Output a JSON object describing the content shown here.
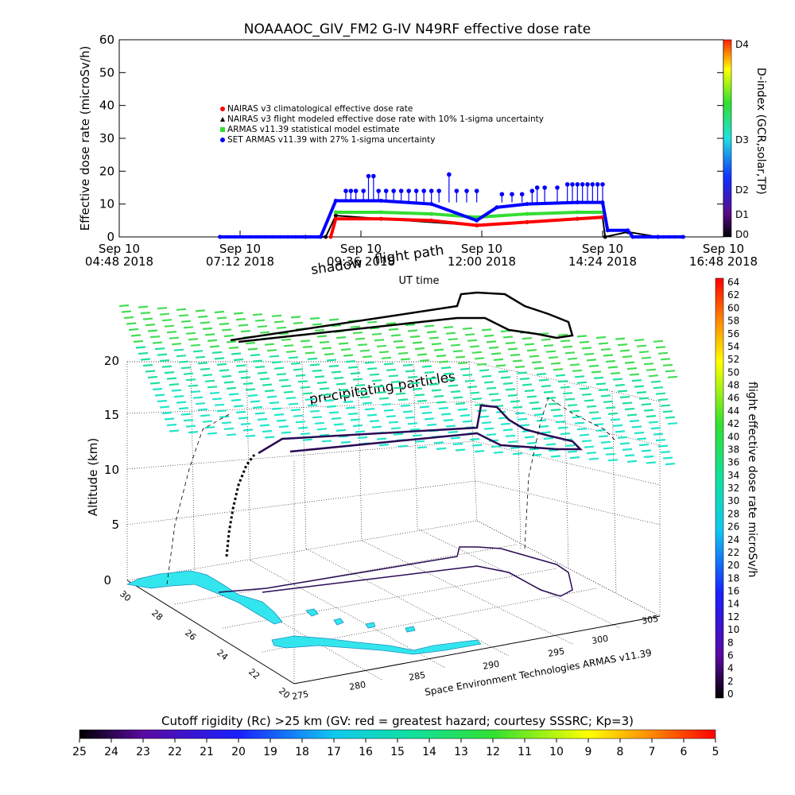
{
  "title": "NOAAAOC_GIV_FM2 G-IV   N49RF  effective dose rate",
  "colors": {
    "red": "#ff0000",
    "black": "#000000",
    "green": "#33dd33",
    "blue": "#0000ff",
    "cyan": "#33e6ee",
    "dark_purple": "#2a0a55",
    "flight_green": "#22cc55"
  },
  "chart_data": [
    {
      "type": "line",
      "ylabel": "Effective dose rate (microSv/h)",
      "xlabel": "UT time",
      "ylim": [
        0,
        60
      ],
      "xlim": [
        "2018-09-10T04:48",
        "2018-09-10T16:48"
      ],
      "y_ticks": [
        "0",
        "10",
        "20",
        "30",
        "40",
        "50",
        "60"
      ],
      "x_ticks": [
        {
          "x": "04:48",
          "line1": "Sep 10",
          "line2": "04:48 2018"
        },
        {
          "x": "07:12",
          "line1": "Sep 10",
          "line2": "07:12 2018"
        },
        {
          "x": "09:36",
          "line1": "Sep 10",
          "line2": "09:36 2018"
        },
        {
          "x": "12:00",
          "line1": "Sep 10",
          "line2": "12:00 2018"
        },
        {
          "x": "14:24",
          "line1": "Sep 10",
          "line2": "14:24 2018"
        },
        {
          "x": "16:48",
          "line1": "Sep 10",
          "line2": "16:48 2018"
        }
      ],
      "legend": [
        {
          "label": "NAIRAS v3 climatological effective dose rate",
          "color": "#ff0000",
          "marker": "circle"
        },
        {
          "label": "NAIRAS v3 flight modeled effective dose rate with 10% 1-sigma uncertainty",
          "color": "#000000",
          "marker": "triangle"
        },
        {
          "label": "ARMAS v11.39 statistical model estimate",
          "color": "#33dd33",
          "marker": "square"
        },
        {
          "label": "SET ARMAS v11.39 with 27% 1-sigma uncertainty",
          "color": "#0000ff",
          "marker": "circle"
        }
      ],
      "overlay_labels": [
        "shadow",
        "flight path"
      ],
      "series": [
        {
          "color": "#000000",
          "x": [
            6.8,
            8.5,
            8.9,
            9.1,
            11.9,
            12.9,
            13.9,
            14.4,
            14.45,
            14.9,
            15.5,
            16.0
          ],
          "y": [
            0,
            0,
            0,
            6.5,
            3.5,
            4.5,
            5.5,
            6,
            0,
            1.5,
            0,
            0
          ]
        },
        {
          "color": "#ff0000",
          "x": [
            9.0,
            9.1,
            10.0,
            11.0,
            11.9,
            12.9,
            13.9,
            14.4
          ],
          "y": [
            0,
            5.5,
            5.5,
            5,
            3.5,
            4.5,
            5.5,
            6
          ]
        },
        {
          "color": "#33dd33",
          "x": [
            9.1,
            10.0,
            11.0,
            11.9,
            12.9,
            13.9,
            14.4
          ],
          "y": [
            7.5,
            7.5,
            7,
            6,
            7,
            7.5,
            7.5
          ]
        },
        {
          "color": "#0000ff",
          "x": [
            6.8,
            8.8,
            9.1,
            10.0,
            11.0,
            11.9,
            12.3,
            12.9,
            13.9,
            14.4,
            14.5,
            14.9,
            15.0,
            15.5,
            16.0
          ],
          "y": [
            0,
            0,
            11,
            11,
            10,
            5,
            9,
            10,
            10.5,
            10.5,
            2,
            2,
            0,
            0,
            0
          ]
        }
      ],
      "blue_spikes": [
        {
          "x": 9.3,
          "y": 14
        },
        {
          "x": 9.4,
          "y": 14
        },
        {
          "x": 9.5,
          "y": 14
        },
        {
          "x": 9.65,
          "y": 14
        },
        {
          "x": 9.75,
          "y": 18.5
        },
        {
          "x": 9.85,
          "y": 18.5
        },
        {
          "x": 9.95,
          "y": 14
        },
        {
          "x": 10.1,
          "y": 14
        },
        {
          "x": 10.25,
          "y": 14
        },
        {
          "x": 10.4,
          "y": 14
        },
        {
          "x": 10.55,
          "y": 14
        },
        {
          "x": 10.7,
          "y": 14
        },
        {
          "x": 10.85,
          "y": 14
        },
        {
          "x": 11.0,
          "y": 14
        },
        {
          "x": 11.15,
          "y": 14
        },
        {
          "x": 11.35,
          "y": 19
        },
        {
          "x": 11.5,
          "y": 14
        },
        {
          "x": 11.7,
          "y": 14
        },
        {
          "x": 11.9,
          "y": 14
        },
        {
          "x": 12.4,
          "y": 13
        },
        {
          "x": 12.6,
          "y": 13
        },
        {
          "x": 12.8,
          "y": 13
        },
        {
          "x": 13.0,
          "y": 14
        },
        {
          "x": 13.1,
          "y": 15
        },
        {
          "x": 13.25,
          "y": 15
        },
        {
          "x": 13.5,
          "y": 15
        },
        {
          "x": 13.7,
          "y": 16
        },
        {
          "x": 13.8,
          "y": 16
        },
        {
          "x": 13.9,
          "y": 16
        },
        {
          "x": 14.0,
          "y": 16
        },
        {
          "x": 14.1,
          "y": 16
        },
        {
          "x": 14.2,
          "y": 16
        },
        {
          "x": 14.3,
          "y": 16
        },
        {
          "x": 14.4,
          "y": 16
        }
      ]
    },
    {
      "type": "scatter",
      "ylabel": "Altitude (km)",
      "z_ticks": [
        "0",
        "5",
        "10",
        "15",
        "20"
      ],
      "lat_ticks": [
        "30",
        "28",
        "26",
        "24",
        "22",
        "20"
      ],
      "lon_ticks": [
        "275",
        "280",
        "285",
        "290",
        "295",
        "300",
        "305"
      ],
      "annotations": {
        "shadow": "shadow",
        "flight_path": "flight path",
        "particles": "precipitating particles",
        "credit": "Space Environment Technologies ARMAS v11.39"
      }
    }
  ],
  "dindex_colorbar": {
    "label": "D-index (GCR,solar,TP)",
    "ticks": [
      "D4",
      "D3",
      "D2",
      "D1",
      "D0"
    ]
  },
  "flight_colorbar": {
    "label": "flight effective dose rate microSv/h",
    "ticks": [
      "64",
      "62",
      "60",
      "58",
      "56",
      "54",
      "52",
      "50",
      "48",
      "46",
      "44",
      "42",
      "40",
      "38",
      "36",
      "34",
      "32",
      "30",
      "28",
      "26",
      "24",
      "22",
      "20",
      "18",
      "16",
      "14",
      "12",
      "10",
      "8",
      "6",
      "4",
      "2",
      "0"
    ]
  },
  "cutoff_colorbar": {
    "title": "Cutoff rigidity (Rc) >25 km (GV: red = greatest hazard; courtesy SSSRC; Kp=3)",
    "ticks": [
      "25",
      "24",
      "23",
      "22",
      "21",
      "20",
      "19",
      "18",
      "17",
      "16",
      "15",
      "14",
      "13",
      "12",
      "11",
      "10",
      "9",
      "8",
      "7",
      "6",
      "5"
    ]
  }
}
